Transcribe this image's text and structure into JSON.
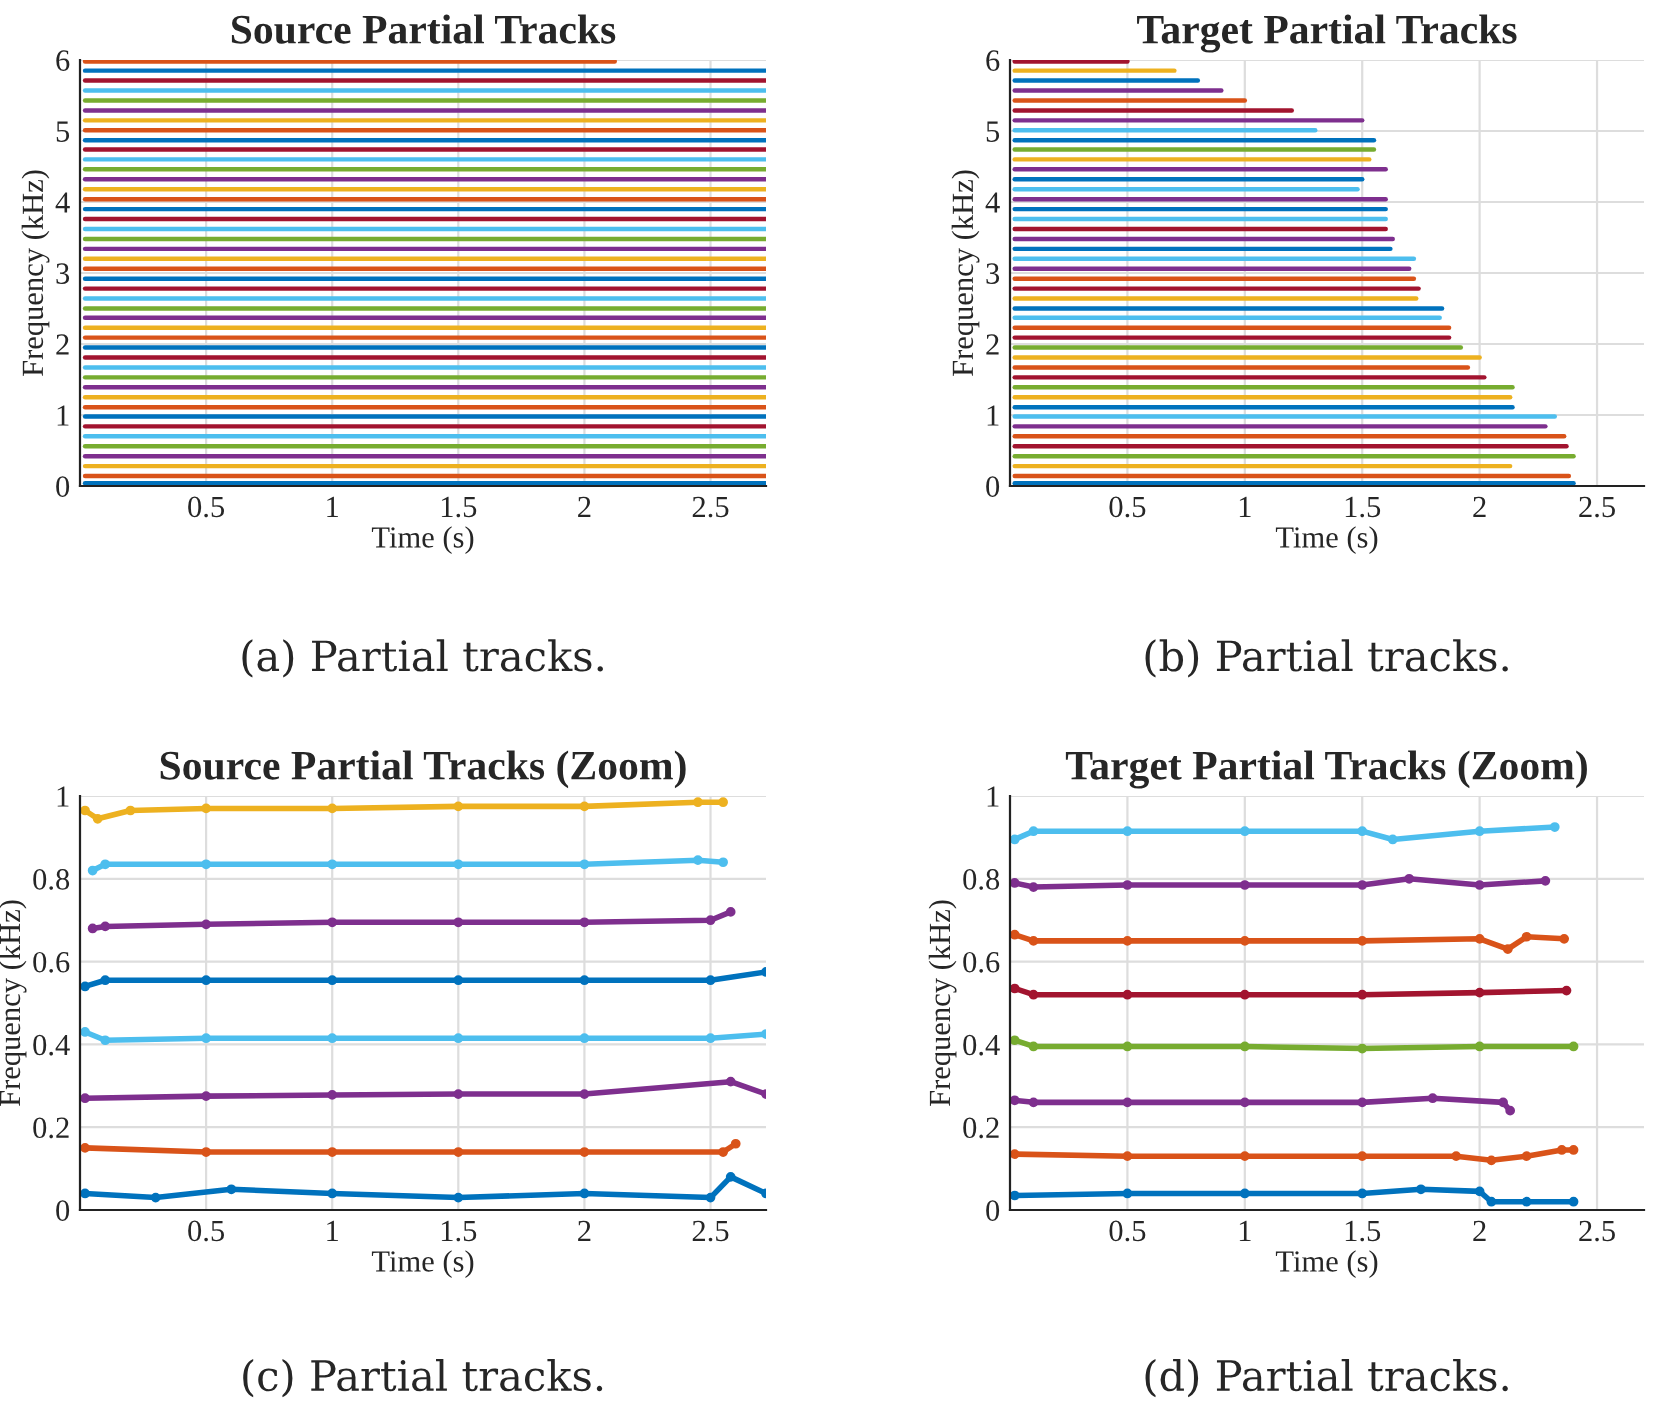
{
  "chart_data": [
    {
      "type": "line",
      "title": "Source Partial Tracks",
      "xlabel": "Time (s)",
      "ylabel": "Frequency (kHz)",
      "xlim": [
        0,
        2.72
      ],
      "ylim": [
        0,
        6
      ],
      "xticks": [
        0.5,
        1,
        1.5,
        2,
        2.5
      ],
      "yticks": [
        0,
        1,
        2,
        3,
        4,
        5,
        6
      ],
      "grid": true,
      "annotations": [
        "(a) Partial tracks."
      ],
      "series": [
        {
          "color": "#0072bd",
          "x": [
            0.02,
            2.72
          ],
          "values": [
            0.04,
            0.04
          ]
        },
        {
          "color": "#d95319",
          "x": [
            0.02,
            2.72
          ],
          "values": [
            0.14,
            0.14
          ]
        },
        {
          "color": "#edb120",
          "x": [
            0.02,
            2.72
          ],
          "values": [
            0.28,
            0.28
          ]
        },
        {
          "color": "#7e2f8e",
          "x": [
            0.02,
            2.72
          ],
          "values": [
            0.42,
            0.42
          ]
        },
        {
          "color": "#77ac30",
          "x": [
            0.02,
            2.72
          ],
          "values": [
            0.56,
            0.56
          ]
        },
        {
          "color": "#4dbeee",
          "x": [
            0.02,
            2.72
          ],
          "values": [
            0.7,
            0.7
          ]
        },
        {
          "color": "#a2142f",
          "x": [
            0.02,
            2.72
          ],
          "values": [
            0.84,
            0.84
          ]
        },
        {
          "color": "#0072bd",
          "x": [
            0.02,
            2.72
          ],
          "values": [
            0.98,
            0.98
          ]
        },
        {
          "color": "#d95319",
          "x": [
            0.02,
            2.72
          ],
          "values": [
            1.11,
            1.11
          ]
        },
        {
          "color": "#edb120",
          "x": [
            0.02,
            2.72
          ],
          "values": [
            1.25,
            1.25
          ]
        },
        {
          "color": "#7e2f8e",
          "x": [
            0.02,
            2.72
          ],
          "values": [
            1.39,
            1.39
          ]
        },
        {
          "color": "#77ac30",
          "x": [
            0.02,
            2.72
          ],
          "values": [
            1.53,
            1.53
          ]
        },
        {
          "color": "#4dbeee",
          "x": [
            0.02,
            2.72
          ],
          "values": [
            1.67,
            1.67
          ]
        },
        {
          "color": "#a2142f",
          "x": [
            0.02,
            2.72
          ],
          "values": [
            1.81,
            1.81
          ]
        },
        {
          "color": "#0072bd",
          "x": [
            0.02,
            2.72
          ],
          "values": [
            1.95,
            1.95
          ]
        },
        {
          "color": "#d95319",
          "x": [
            0.02,
            2.72
          ],
          "values": [
            2.09,
            2.09
          ]
        },
        {
          "color": "#edb120",
          "x": [
            0.02,
            2.72
          ],
          "values": [
            2.23,
            2.23
          ]
        },
        {
          "color": "#7e2f8e",
          "x": [
            0.02,
            2.72
          ],
          "values": [
            2.37,
            2.37
          ]
        },
        {
          "color": "#77ac30",
          "x": [
            0.02,
            2.72
          ],
          "values": [
            2.5,
            2.5
          ]
        },
        {
          "color": "#4dbeee",
          "x": [
            0.02,
            2.72
          ],
          "values": [
            2.64,
            2.64
          ]
        },
        {
          "color": "#a2142f",
          "x": [
            0.02,
            2.72
          ],
          "values": [
            2.78,
            2.78
          ]
        },
        {
          "color": "#0072bd",
          "x": [
            0.02,
            2.72
          ],
          "values": [
            2.92,
            2.92
          ]
        },
        {
          "color": "#d95319",
          "x": [
            0.02,
            2.72
          ],
          "values": [
            3.06,
            3.06
          ]
        },
        {
          "color": "#edb120",
          "x": [
            0.02,
            2.72
          ],
          "values": [
            3.2,
            3.2
          ]
        },
        {
          "color": "#7e2f8e",
          "x": [
            0.02,
            2.72
          ],
          "values": [
            3.34,
            3.34
          ]
        },
        {
          "color": "#77ac30",
          "x": [
            0.02,
            2.72
          ],
          "values": [
            3.48,
            3.48
          ]
        },
        {
          "color": "#4dbeee",
          "x": [
            0.02,
            2.72
          ],
          "values": [
            3.62,
            3.62
          ]
        },
        {
          "color": "#a2142f",
          "x": [
            0.02,
            2.72
          ],
          "values": [
            3.76,
            3.76
          ]
        },
        {
          "color": "#0072bd",
          "x": [
            0.02,
            2.72
          ],
          "values": [
            3.9,
            3.9
          ]
        },
        {
          "color": "#d95319",
          "x": [
            0.02,
            2.72
          ],
          "values": [
            4.04,
            4.04
          ]
        },
        {
          "color": "#edb120",
          "x": [
            0.02,
            2.72
          ],
          "values": [
            4.18,
            4.18
          ]
        },
        {
          "color": "#7e2f8e",
          "x": [
            0.02,
            2.72
          ],
          "values": [
            4.32,
            4.32
          ]
        },
        {
          "color": "#77ac30",
          "x": [
            0.02,
            2.72
          ],
          "values": [
            4.46,
            4.46
          ]
        },
        {
          "color": "#4dbeee",
          "x": [
            0.02,
            2.72
          ],
          "values": [
            4.6,
            4.6
          ]
        },
        {
          "color": "#a2142f",
          "x": [
            0.02,
            2.72
          ],
          "values": [
            4.74,
            4.74
          ]
        },
        {
          "color": "#0072bd",
          "x": [
            0.02,
            2.72
          ],
          "values": [
            4.87,
            4.87
          ]
        },
        {
          "color": "#d95319",
          "x": [
            0.02,
            2.72
          ],
          "values": [
            5.01,
            5.01
          ]
        },
        {
          "color": "#edb120",
          "x": [
            0.02,
            2.72
          ],
          "values": [
            5.15,
            5.15
          ]
        },
        {
          "color": "#7e2f8e",
          "x": [
            0.02,
            2.72
          ],
          "values": [
            5.29,
            5.29
          ]
        },
        {
          "color": "#77ac30",
          "x": [
            0.02,
            2.72
          ],
          "values": [
            5.43,
            5.43
          ]
        },
        {
          "color": "#4dbeee",
          "x": [
            0.02,
            2.72
          ],
          "values": [
            5.57,
            5.57
          ]
        },
        {
          "color": "#a2142f",
          "x": [
            0.02,
            2.72
          ],
          "values": [
            5.71,
            5.71
          ]
        },
        {
          "color": "#0072bd",
          "x": [
            0.02,
            2.72
          ],
          "values": [
            5.85,
            5.85
          ]
        },
        {
          "color": "#d95319",
          "x": [
            0.02,
            2.12
          ],
          "values": [
            5.98,
            5.98
          ]
        }
      ]
    },
    {
      "type": "line",
      "title": "Target Partial Tracks",
      "xlabel": "Time (s)",
      "ylabel": "Frequency (kHz)",
      "xlim": [
        0,
        2.7
      ],
      "ylim": [
        0,
        6
      ],
      "xticks": [
        0.5,
        1,
        1.5,
        2,
        2.5
      ],
      "yticks": [
        0,
        1,
        2,
        3,
        4,
        5,
        6
      ],
      "grid": true,
      "annotations": [
        "(b) Partial tracks."
      ],
      "series": [
        {
          "color": "#0072bd",
          "x": [
            0.02,
            2.4
          ],
          "values": [
            0.04,
            0.04
          ]
        },
        {
          "color": "#d95319",
          "x": [
            0.02,
            2.38
          ],
          "values": [
            0.14,
            0.14
          ]
        },
        {
          "color": "#edb120",
          "x": [
            0.02,
            2.13
          ],
          "values": [
            0.28,
            0.28
          ]
        },
        {
          "color": "#77ac30",
          "x": [
            0.02,
            2.4
          ],
          "values": [
            0.42,
            0.42
          ]
        },
        {
          "color": "#a2142f",
          "x": [
            0.02,
            2.37
          ],
          "values": [
            0.56,
            0.56
          ]
        },
        {
          "color": "#d95319",
          "x": [
            0.02,
            2.36
          ],
          "values": [
            0.7,
            0.7
          ]
        },
        {
          "color": "#7e2f8e",
          "x": [
            0.02,
            2.28
          ],
          "values": [
            0.84,
            0.84
          ]
        },
        {
          "color": "#4dbeee",
          "x": [
            0.02,
            2.32
          ],
          "values": [
            0.98,
            0.98
          ]
        },
        {
          "color": "#0072bd",
          "x": [
            0.02,
            2.14
          ],
          "values": [
            1.11,
            1.11
          ]
        },
        {
          "color": "#edb120",
          "x": [
            0.02,
            2.13
          ],
          "values": [
            1.25,
            1.25
          ]
        },
        {
          "color": "#77ac30",
          "x": [
            0.02,
            2.14
          ],
          "values": [
            1.39,
            1.39
          ]
        },
        {
          "color": "#a2142f",
          "x": [
            0.02,
            2.02
          ],
          "values": [
            1.53,
            1.53
          ]
        },
        {
          "color": "#d95319",
          "x": [
            0.02,
            1.95
          ],
          "values": [
            1.67,
            1.67
          ]
        },
        {
          "color": "#edb120",
          "x": [
            0.02,
            2.0
          ],
          "values": [
            1.81,
            1.81
          ]
        },
        {
          "color": "#77ac30",
          "x": [
            0.02,
            1.92
          ],
          "values": [
            1.95,
            1.95
          ]
        },
        {
          "color": "#a2142f",
          "x": [
            0.02,
            1.87
          ],
          "values": [
            2.09,
            2.09
          ]
        },
        {
          "color": "#d95319",
          "x": [
            0.02,
            1.87
          ],
          "values": [
            2.23,
            2.23
          ]
        },
        {
          "color": "#4dbeee",
          "x": [
            0.02,
            1.83
          ],
          "values": [
            2.37,
            2.37
          ]
        },
        {
          "color": "#0072bd",
          "x": [
            0.02,
            1.84
          ],
          "values": [
            2.5,
            2.5
          ]
        },
        {
          "color": "#edb120",
          "x": [
            0.02,
            1.73
          ],
          "values": [
            2.64,
            2.64
          ]
        },
        {
          "color": "#a2142f",
          "x": [
            0.02,
            1.74
          ],
          "values": [
            2.78,
            2.78
          ]
        },
        {
          "color": "#d95319",
          "x": [
            0.02,
            1.72
          ],
          "values": [
            2.92,
            2.92
          ]
        },
        {
          "color": "#7e2f8e",
          "x": [
            0.02,
            1.7
          ],
          "values": [
            3.06,
            3.06
          ]
        },
        {
          "color": "#4dbeee",
          "x": [
            0.02,
            1.72
          ],
          "values": [
            3.2,
            3.2
          ]
        },
        {
          "color": "#0072bd",
          "x": [
            0.02,
            1.62
          ],
          "values": [
            3.34,
            3.34
          ]
        },
        {
          "color": "#7e2f8e",
          "x": [
            0.02,
            1.63
          ],
          "values": [
            3.48,
            3.48
          ]
        },
        {
          "color": "#a2142f",
          "x": [
            0.02,
            1.6
          ],
          "values": [
            3.62,
            3.62
          ]
        },
        {
          "color": "#4dbeee",
          "x": [
            0.02,
            1.6
          ],
          "values": [
            3.76,
            3.76
          ]
        },
        {
          "color": "#0072bd",
          "x": [
            0.02,
            1.6
          ],
          "values": [
            3.9,
            3.9
          ]
        },
        {
          "color": "#7e2f8e",
          "x": [
            0.02,
            1.6
          ],
          "values": [
            4.04,
            4.04
          ]
        },
        {
          "color": "#4dbeee",
          "x": [
            0.02,
            1.48
          ],
          "values": [
            4.18,
            4.18
          ]
        },
        {
          "color": "#0072bd",
          "x": [
            0.02,
            1.5
          ],
          "values": [
            4.32,
            4.32
          ]
        },
        {
          "color": "#7e2f8e",
          "x": [
            0.02,
            1.6
          ],
          "values": [
            4.46,
            4.46
          ]
        },
        {
          "color": "#edb120",
          "x": [
            0.02,
            1.53
          ],
          "values": [
            4.6,
            4.6
          ]
        },
        {
          "color": "#77ac30",
          "x": [
            0.02,
            1.55
          ],
          "values": [
            4.74,
            4.74
          ]
        },
        {
          "color": "#0072bd",
          "x": [
            0.02,
            1.55
          ],
          "values": [
            4.87,
            4.87
          ]
        },
        {
          "color": "#4dbeee",
          "x": [
            0.02,
            1.3
          ],
          "values": [
            5.01,
            5.01
          ]
        },
        {
          "color": "#7e2f8e",
          "x": [
            0.02,
            1.5
          ],
          "values": [
            5.15,
            5.15
          ]
        },
        {
          "color": "#a2142f",
          "x": [
            0.02,
            1.2
          ],
          "values": [
            5.29,
            5.29
          ]
        },
        {
          "color": "#d95319",
          "x": [
            0.02,
            1.0
          ],
          "values": [
            5.43,
            5.43
          ]
        },
        {
          "color": "#7e2f8e",
          "x": [
            0.02,
            0.9
          ],
          "values": [
            5.57,
            5.57
          ]
        },
        {
          "color": "#0072bd",
          "x": [
            0.02,
            0.8
          ],
          "values": [
            5.71,
            5.71
          ]
        },
        {
          "color": "#edb120",
          "x": [
            0.02,
            0.7
          ],
          "values": [
            5.85,
            5.85
          ]
        },
        {
          "color": "#a2142f",
          "x": [
            0.02,
            0.5
          ],
          "values": [
            5.98,
            5.98
          ]
        }
      ]
    },
    {
      "type": "line",
      "title": "Source Partial Tracks (Zoom)",
      "xlabel": "Time (s)",
      "ylabel": "Frequency (kHz)",
      "xlim": [
        0,
        2.72
      ],
      "ylim": [
        0,
        1
      ],
      "xticks": [
        0.5,
        1,
        1.5,
        2,
        2.5
      ],
      "yticks": [
        0,
        0.2,
        0.4,
        0.6,
        0.8,
        1
      ],
      "grid": true,
      "marker": "circle",
      "annotations": [
        "(c) Partial tracks."
      ],
      "series": [
        {
          "color": "#0072bd",
          "x": [
            0.02,
            0.3,
            0.6,
            1.0,
            1.5,
            2.0,
            2.5,
            2.58,
            2.72
          ],
          "values": [
            0.04,
            0.03,
            0.05,
            0.04,
            0.03,
            0.04,
            0.03,
            0.08,
            0.04
          ]
        },
        {
          "color": "#d95319",
          "x": [
            0.02,
            0.5,
            1.0,
            1.5,
            2.0,
            2.55,
            2.6
          ],
          "values": [
            0.15,
            0.14,
            0.14,
            0.14,
            0.14,
            0.14,
            0.16
          ]
        },
        {
          "color": "#7e2f8e",
          "x": [
            0.02,
            0.5,
            1.0,
            1.5,
            2.0,
            2.58,
            2.72
          ],
          "values": [
            0.27,
            0.275,
            0.278,
            0.28,
            0.28,
            0.31,
            0.28
          ]
        },
        {
          "color": "#4dbeee",
          "x": [
            0.02,
            0.1,
            0.5,
            1.0,
            1.5,
            2.0,
            2.5,
            2.72
          ],
          "values": [
            0.43,
            0.41,
            0.415,
            0.415,
            0.415,
            0.415,
            0.415,
            0.425
          ]
        },
        {
          "color": "#0072bd",
          "x": [
            0.02,
            0.1,
            0.5,
            1.0,
            1.5,
            2.0,
            2.5,
            2.72
          ],
          "values": [
            0.54,
            0.555,
            0.555,
            0.555,
            0.555,
            0.555,
            0.555,
            0.575
          ]
        },
        {
          "color": "#7e2f8e",
          "x": [
            0.05,
            0.1,
            0.5,
            1.0,
            1.5,
            2.0,
            2.5,
            2.58
          ],
          "values": [
            0.68,
            0.685,
            0.69,
            0.695,
            0.695,
            0.695,
            0.7,
            0.72
          ]
        },
        {
          "color": "#4dbeee",
          "x": [
            0.05,
            0.1,
            0.5,
            1.0,
            1.5,
            2.0,
            2.45,
            2.55
          ],
          "values": [
            0.82,
            0.835,
            0.835,
            0.835,
            0.835,
            0.835,
            0.845,
            0.84
          ]
        },
        {
          "color": "#edb120",
          "x": [
            0.02,
            0.07,
            0.2,
            0.5,
            1.0,
            1.5,
            2.0,
            2.45,
            2.55
          ],
          "values": [
            0.965,
            0.945,
            0.965,
            0.97,
            0.97,
            0.975,
            0.975,
            0.985,
            0.985
          ]
        }
      ]
    },
    {
      "type": "line",
      "title": "Target Partial Tracks (Zoom)",
      "xlabel": "Time (s)",
      "ylabel": "Frequency (kHz)",
      "xlim": [
        0,
        2.7
      ],
      "ylim": [
        0,
        1
      ],
      "xticks": [
        0.5,
        1,
        1.5,
        2,
        2.5
      ],
      "yticks": [
        0,
        0.2,
        0.4,
        0.6,
        0.8,
        1
      ],
      "grid": true,
      "marker": "circle",
      "annotations": [
        "(d) Partial tracks."
      ],
      "series": [
        {
          "color": "#0072bd",
          "x": [
            0.02,
            0.5,
            1.0,
            1.5,
            1.75,
            2.0,
            2.05,
            2.2,
            2.4
          ],
          "values": [
            0.035,
            0.04,
            0.04,
            0.04,
            0.05,
            0.045,
            0.02,
            0.02,
            0.02
          ]
        },
        {
          "color": "#d95319",
          "x": [
            0.02,
            0.5,
            1.0,
            1.5,
            1.9,
            2.05,
            2.2,
            2.35,
            2.4
          ],
          "values": [
            0.135,
            0.13,
            0.13,
            0.13,
            0.13,
            0.12,
            0.13,
            0.145,
            0.145
          ]
        },
        {
          "color": "#7e2f8e",
          "x": [
            0.02,
            0.1,
            0.5,
            1.0,
            1.5,
            1.8,
            2.1,
            2.13
          ],
          "values": [
            0.265,
            0.26,
            0.26,
            0.26,
            0.26,
            0.27,
            0.26,
            0.24
          ]
        },
        {
          "color": "#77ac30",
          "x": [
            0.02,
            0.1,
            0.5,
            1.0,
            1.5,
            2.0,
            2.4
          ],
          "values": [
            0.41,
            0.395,
            0.395,
            0.395,
            0.39,
            0.395,
            0.395
          ]
        },
        {
          "color": "#a2142f",
          "x": [
            0.02,
            0.1,
            0.5,
            1.0,
            1.5,
            2.0,
            2.37
          ],
          "values": [
            0.535,
            0.52,
            0.52,
            0.52,
            0.52,
            0.525,
            0.53
          ]
        },
        {
          "color": "#d95319",
          "x": [
            0.02,
            0.1,
            0.5,
            1.0,
            1.5,
            2.0,
            2.12,
            2.2,
            2.36
          ],
          "values": [
            0.665,
            0.65,
            0.65,
            0.65,
            0.65,
            0.655,
            0.63,
            0.66,
            0.655
          ]
        },
        {
          "color": "#7e2f8e",
          "x": [
            0.02,
            0.1,
            0.5,
            1.0,
            1.5,
            1.7,
            2.0,
            2.28
          ],
          "values": [
            0.79,
            0.78,
            0.785,
            0.785,
            0.785,
            0.8,
            0.785,
            0.795
          ]
        },
        {
          "color": "#4dbeee",
          "x": [
            0.02,
            0.1,
            0.5,
            1.0,
            1.5,
            1.63,
            2.0,
            2.32
          ],
          "values": [
            0.895,
            0.915,
            0.915,
            0.915,
            0.915,
            0.895,
            0.915,
            0.925
          ]
        }
      ]
    }
  ]
}
